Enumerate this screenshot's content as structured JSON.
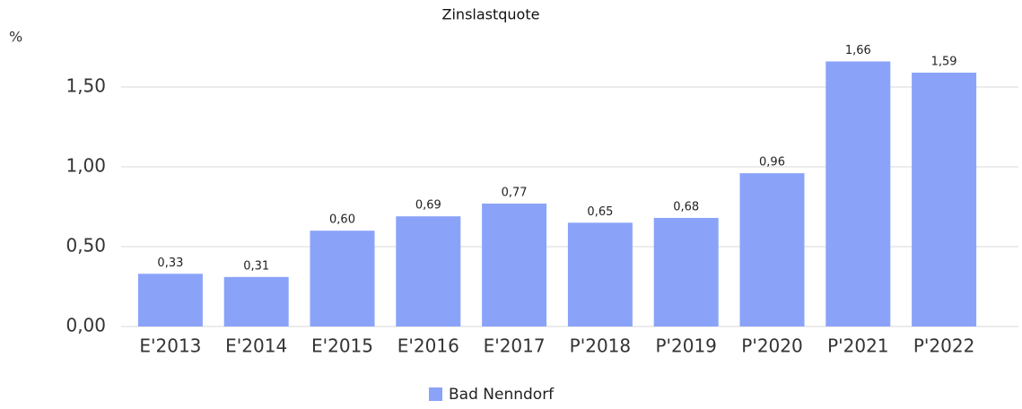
{
  "chart_data": {
    "type": "bar",
    "title": "Zinslastquote",
    "y_label": "%",
    "categories": [
      "E'2013",
      "E'2014",
      "E'2015",
      "E'2016",
      "E'2017",
      "P'2018",
      "P'2019",
      "P'2020",
      "P'2021",
      "P'2022"
    ],
    "series": [
      {
        "name": "Bad Nenndorf",
        "color": "#8aa3f9",
        "values": [
          0.33,
          0.31,
          0.6,
          0.69,
          0.77,
          0.65,
          0.68,
          0.96,
          1.66,
          1.59
        ],
        "value_labels": [
          "0,33",
          "0,31",
          "0,60",
          "0,69",
          "0,77",
          "0,65",
          "0,68",
          "0,96",
          "1,66",
          "1,59"
        ]
      }
    ],
    "ylim": [
      0,
      1.8
    ],
    "yticks": [
      {
        "value": 0,
        "label": "0,00"
      },
      {
        "value": 0.5,
        "label": "0,50"
      },
      {
        "value": 1.0,
        "label": "1,00"
      },
      {
        "value": 1.5,
        "label": "1,50"
      }
    ],
    "grid": true,
    "legend": "bottom"
  }
}
